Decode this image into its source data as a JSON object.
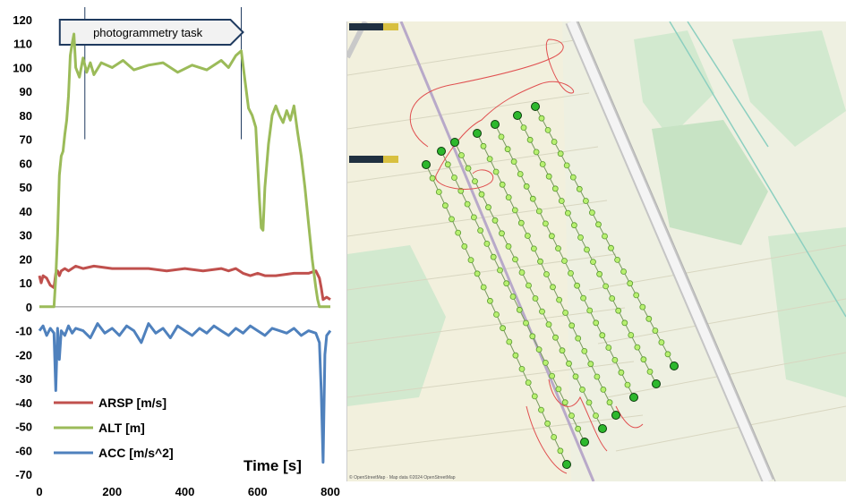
{
  "chart_data": {
    "type": "line",
    "xlabel": "Time [s]",
    "ylabel": "",
    "xlim": [
      0,
      800
    ],
    "ylim": [
      -70,
      120
    ],
    "xticks": [
      0,
      200,
      400,
      600,
      800
    ],
    "yticks": [
      120,
      110,
      100,
      90,
      80,
      70,
      60,
      50,
      40,
      30,
      20,
      10,
      0,
      -10,
      -20,
      -30,
      -40,
      -50,
      -60,
      -70
    ],
    "grid": false,
    "legend_position": "bottom-left",
    "annotation": {
      "label": "photogrammetry task",
      "x_start": 125,
      "x_end": 555
    },
    "series": [
      {
        "name": "ARSP [m/s]",
        "color": "#c0504d",
        "x": [
          0,
          5,
          10,
          20,
          30,
          40,
          45,
          50,
          55,
          60,
          70,
          80,
          100,
          120,
          150,
          200,
          250,
          300,
          350,
          400,
          450,
          500,
          520,
          540,
          560,
          580,
          600,
          620,
          650,
          700,
          740,
          760,
          770,
          775,
          780,
          790,
          800
        ],
        "values": [
          13,
          10,
          13,
          12,
          9,
          8,
          14,
          15,
          13,
          15,
          16,
          15,
          17,
          16,
          17,
          16,
          16,
          16,
          15,
          16,
          15,
          16,
          15,
          16,
          14,
          13,
          14,
          13,
          13,
          14,
          14,
          15,
          12,
          8,
          3,
          4,
          3
        ]
      },
      {
        "name": "ALT [m]",
        "color": "#9bbb59",
        "x": [
          0,
          40,
          45,
          50,
          55,
          60,
          65,
          70,
          75,
          80,
          85,
          90,
          95,
          100,
          110,
          120,
          130,
          140,
          150,
          170,
          200,
          230,
          260,
          300,
          340,
          380,
          420,
          460,
          500,
          520,
          540,
          555,
          565,
          575,
          585,
          595,
          600,
          605,
          610,
          615,
          620,
          630,
          640,
          650,
          660,
          670,
          680,
          690,
          700,
          710,
          720,
          730,
          740,
          750,
          760,
          765,
          770,
          775,
          780,
          785,
          800
        ],
        "values": [
          0,
          0,
          12,
          30,
          55,
          63,
          65,
          72,
          78,
          88,
          105,
          110,
          114,
          100,
          96,
          104,
          98,
          102,
          97,
          102,
          100,
          103,
          99,
          101,
          102,
          98,
          101,
          99,
          103,
          100,
          105,
          107,
          95,
          83,
          80,
          75,
          60,
          45,
          33,
          32,
          50,
          68,
          80,
          84,
          80,
          77,
          82,
          78,
          84,
          73,
          63,
          50,
          35,
          20,
          8,
          3,
          0,
          0,
          0,
          0,
          0
        ]
      },
      {
        "name": "ACC [m/s^2]",
        "color": "#4f81bd",
        "x": [
          0,
          10,
          20,
          30,
          40,
          45,
          50,
          55,
          60,
          70,
          80,
          90,
          100,
          120,
          140,
          160,
          180,
          200,
          220,
          240,
          260,
          280,
          300,
          320,
          340,
          360,
          380,
          400,
          420,
          440,
          460,
          480,
          500,
          520,
          540,
          560,
          580,
          600,
          620,
          640,
          660,
          680,
          700,
          720,
          740,
          760,
          770,
          775,
          780,
          785,
          790,
          800
        ],
        "values": [
          -10,
          -8,
          -12,
          -9,
          -11,
          -35,
          -9,
          -22,
          -10,
          -12,
          -8,
          -11,
          -9,
          -10,
          -13,
          -7,
          -11,
          -9,
          -12,
          -8,
          -10,
          -15,
          -7,
          -11,
          -9,
          -13,
          -8,
          -10,
          -12,
          -9,
          -11,
          -8,
          -10,
          -12,
          -9,
          -11,
          -8,
          -10,
          -12,
          -9,
          -10,
          -11,
          -9,
          -12,
          -10,
          -11,
          -15,
          -35,
          -65,
          -20,
          -12,
          -10
        ]
      }
    ]
  },
  "map": {
    "credit": "© OpenStreetMap · Map data ©2024 OpenStreetMap"
  }
}
